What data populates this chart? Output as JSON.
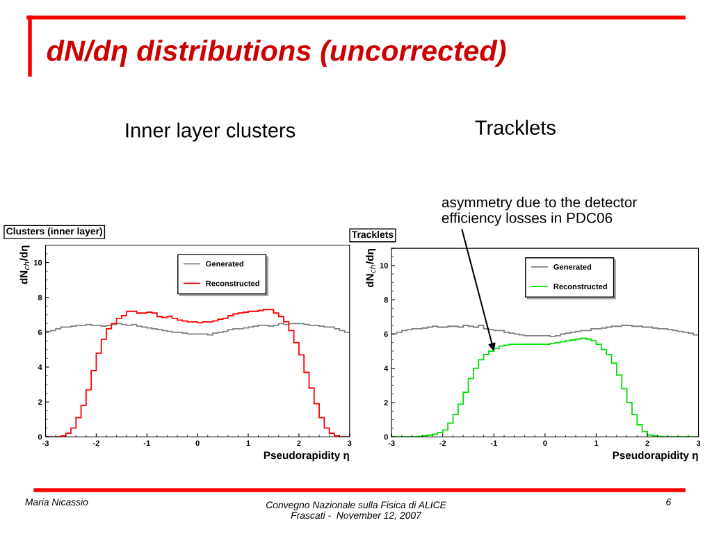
{
  "chart_data": [
    {
      "type": "histogram",
      "title": "Clusters (inner layer)",
      "subtitle": "Inner layer clusters",
      "xlabel": "Pseudorapidity η",
      "ylabel": "dN$_{ch}$/dη",
      "annotations": [
        "dN/dη distributions (uncorrected)",
        "Maria Nicassio",
        "Convegno Nazionale sulla Fisica di ALICE\nFrascati -  November 12, 2007",
        "6"
      ],
      "bins": [
        -3.0,
        -2.9,
        -2.8,
        -2.7,
        -2.6,
        -2.5,
        -2.4,
        -2.3,
        -2.2,
        -2.1,
        -2.0,
        -1.9,
        -1.8,
        -1.7,
        -1.6,
        -1.5,
        -1.4,
        -1.3,
        -1.2,
        -1.1,
        -1.0,
        -0.9,
        -0.8,
        -0.7,
        -0.6,
        -0.5,
        -0.4,
        -0.3,
        -0.2,
        -0.1,
        0.0,
        0.1,
        0.2,
        0.3,
        0.4,
        0.5,
        0.6,
        0.7,
        0.8,
        0.9,
        1.0,
        1.1,
        1.2,
        1.3,
        1.4,
        1.5,
        1.6,
        1.7,
        1.8,
        1.9,
        2.0,
        2.1,
        2.2,
        2.3,
        2.4,
        2.5,
        2.6,
        2.7,
        2.8,
        2.9,
        3.0
      ],
      "series": [
        {
          "name": "Generated",
          "color": "#808080",
          "values": [
            6.05,
            6.1,
            6.2,
            6.3,
            6.3,
            6.35,
            6.4,
            6.4,
            6.45,
            6.4,
            6.4,
            6.35,
            6.4,
            6.45,
            6.5,
            6.45,
            6.4,
            6.45,
            6.35,
            6.3,
            6.25,
            6.2,
            6.15,
            6.1,
            6.05,
            6.0,
            6.0,
            5.95,
            5.9,
            5.9,
            5.9,
            5.9,
            5.85,
            5.95,
            6.0,
            6.05,
            6.15,
            6.2,
            6.2,
            6.25,
            6.3,
            6.35,
            6.4,
            6.4,
            6.35,
            6.4,
            6.5,
            6.45,
            6.5,
            6.5,
            6.5,
            6.45,
            6.4,
            6.4,
            6.35,
            6.3,
            6.3,
            6.2,
            6.1,
            6.0
          ]
        },
        {
          "name": "Reconstructed",
          "color": "#ff0000",
          "values": [
            0,
            0,
            0,
            0.05,
            0.2,
            0.5,
            1.1,
            1.8,
            2.7,
            3.8,
            4.8,
            5.6,
            6.2,
            6.5,
            6.8,
            6.95,
            7.2,
            7.2,
            7.1,
            7.1,
            7.15,
            7.1,
            6.9,
            6.85,
            6.9,
            6.8,
            6.7,
            6.65,
            6.6,
            6.6,
            6.55,
            6.6,
            6.6,
            6.65,
            6.75,
            6.8,
            6.95,
            7.05,
            7.1,
            7.15,
            7.2,
            7.2,
            7.25,
            7.3,
            7.3,
            7.1,
            6.9,
            6.6,
            6.1,
            5.4,
            4.7,
            3.7,
            2.8,
            1.9,
            1.1,
            0.5,
            0.2,
            0.05,
            0,
            0
          ]
        }
      ],
      "xlim": [
        -3,
        3
      ],
      "ylim": [
        0,
        11
      ],
      "xticks": [
        -3,
        -2,
        -1,
        0,
        1,
        2,
        3
      ],
      "yticks": [
        0,
        2,
        4,
        6,
        8,
        10
      ],
      "legend": "top",
      "grid": false
    },
    {
      "type": "histogram",
      "title": "Tracklets",
      "subtitle": "Tracklets",
      "xlabel": "Pseudorapidity η",
      "ylabel": "dN$_{ch}$/dη",
      "annotations": [
        {
          "text": "asymmetry due to the detector\nefficiency losses in PDC06",
          "x": -1.0,
          "y": 5.0
        }
      ],
      "bins": [
        -3.0,
        -2.9,
        -2.8,
        -2.7,
        -2.6,
        -2.5,
        -2.4,
        -2.3,
        -2.2,
        -2.1,
        -2.0,
        -1.9,
        -1.8,
        -1.7,
        -1.6,
        -1.5,
        -1.4,
        -1.3,
        -1.2,
        -1.1,
        -1.0,
        -0.9,
        -0.8,
        -0.7,
        -0.6,
        -0.5,
        -0.4,
        -0.3,
        -0.2,
        -0.1,
        0.0,
        0.1,
        0.2,
        0.3,
        0.4,
        0.5,
        0.6,
        0.7,
        0.8,
        0.9,
        1.0,
        1.1,
        1.2,
        1.3,
        1.4,
        1.5,
        1.6,
        1.7,
        1.8,
        1.9,
        2.0,
        2.1,
        2.2,
        2.3,
        2.4,
        2.5,
        2.6,
        2.7,
        2.8,
        2.9,
        3.0
      ],
      "series": [
        {
          "name": "Generated",
          "color": "#808080",
          "values": [
            6.0,
            6.1,
            6.2,
            6.25,
            6.3,
            6.3,
            6.35,
            6.4,
            6.45,
            6.4,
            6.4,
            6.45,
            6.45,
            6.4,
            6.5,
            6.45,
            6.4,
            6.5,
            6.3,
            6.25,
            6.2,
            6.2,
            6.1,
            6.05,
            6.0,
            5.95,
            5.9,
            5.9,
            5.9,
            5.9,
            5.9,
            5.85,
            5.9,
            6.0,
            6.05,
            6.1,
            6.15,
            6.2,
            6.2,
            6.3,
            6.3,
            6.35,
            6.4,
            6.45,
            6.45,
            6.5,
            6.5,
            6.45,
            6.45,
            6.4,
            6.4,
            6.35,
            6.3,
            6.3,
            6.25,
            6.2,
            6.15,
            6.1,
            6.05,
            5.95
          ]
        },
        {
          "name": "Reconstructed",
          "color": "#00e000",
          "values": [
            0,
            0,
            0,
            0,
            0,
            0.02,
            0.05,
            0.1,
            0.15,
            0.25,
            0.4,
            0.8,
            1.3,
            1.9,
            2.6,
            3.4,
            4.0,
            4.5,
            4.8,
            5.0,
            5.15,
            5.3,
            5.35,
            5.4,
            5.4,
            5.4,
            5.4,
            5.4,
            5.4,
            5.4,
            5.4,
            5.45,
            5.5,
            5.55,
            5.6,
            5.65,
            5.7,
            5.75,
            5.7,
            5.6,
            5.4,
            5.1,
            4.8,
            4.3,
            3.6,
            2.8,
            2.0,
            1.3,
            0.7,
            0.3,
            0.1,
            0.05,
            0.02,
            0,
            0,
            0,
            0,
            0,
            0,
            0
          ]
        }
      ],
      "xlim": [
        -3,
        3
      ],
      "ylim": [
        0,
        11
      ],
      "xticks": [
        -3,
        -2,
        -1,
        0,
        1,
        2,
        3
      ],
      "yticks": [
        0,
        2,
        4,
        6,
        8,
        10
      ],
      "legend": "top",
      "grid": false
    }
  ]
}
